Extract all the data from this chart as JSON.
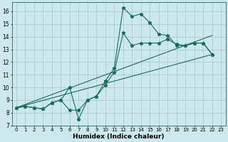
{
  "xlabel": "Humidex (Indice chaleur)",
  "bg_color": "#cce8ec",
  "grid_color": "#a8cdd4",
  "line_color": "#1a6b5a",
  "xlim": [
    -0.5,
    23.5
  ],
  "ylim": [
    7,
    16.7
  ],
  "xticks": [
    0,
    1,
    2,
    3,
    4,
    5,
    6,
    7,
    8,
    9,
    10,
    11,
    12,
    13,
    14,
    15,
    16,
    17,
    18,
    19,
    20,
    21,
    22,
    23
  ],
  "yticks": [
    7,
    8,
    9,
    10,
    11,
    12,
    13,
    14,
    15,
    16
  ],
  "line1_x": [
    0,
    1,
    2,
    3,
    4,
    5,
    6,
    7,
    8,
    9,
    10,
    11,
    12,
    13,
    14,
    15,
    16,
    17,
    18,
    19,
    20,
    21,
    22
  ],
  "line1_y": [
    8.4,
    8.5,
    8.4,
    8.3,
    8.8,
    9.0,
    10.0,
    7.5,
    9.0,
    9.3,
    10.5,
    11.5,
    16.3,
    15.6,
    15.8,
    15.1,
    14.2,
    14.1,
    13.3,
    13.3,
    13.5,
    13.5,
    12.6
  ],
  "line2_x": [
    0,
    1,
    2,
    3,
    4,
    5,
    6,
    7,
    8,
    9,
    10,
    11,
    12,
    13,
    14,
    15,
    16,
    17,
    18,
    19,
    20,
    21,
    22
  ],
  "line2_y": [
    8.4,
    8.5,
    8.4,
    8.3,
    8.8,
    9.0,
    8.2,
    8.2,
    9.0,
    9.3,
    10.2,
    11.2,
    14.3,
    13.3,
    13.5,
    13.5,
    13.5,
    13.8,
    13.4,
    13.3,
    13.5,
    13.5,
    12.6
  ],
  "line3_x": [
    0,
    22
  ],
  "line3_y": [
    8.4,
    12.6
  ],
  "line4_x": [
    0,
    22
  ],
  "line4_y": [
    8.4,
    14.1
  ]
}
